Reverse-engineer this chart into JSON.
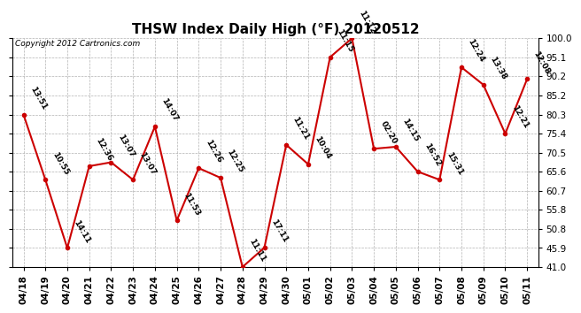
{
  "title": "THSW Index Daily High (°F) 20120512",
  "copyright": "Copyright 2012 Cartronics.com",
  "x_labels": [
    "04/18",
    "04/19",
    "04/20",
    "04/21",
    "04/22",
    "04/23",
    "04/24",
    "04/25",
    "04/26",
    "04/27",
    "04/28",
    "04/29",
    "04/30",
    "05/01",
    "05/02",
    "05/03",
    "05/04",
    "05/05",
    "05/06",
    "05/07",
    "05/08",
    "05/09",
    "05/10",
    "05/11"
  ],
  "y_values": [
    80.3,
    63.5,
    45.9,
    67.0,
    68.0,
    63.5,
    77.2,
    53.0,
    66.5,
    64.0,
    41.0,
    46.0,
    72.5,
    67.5,
    95.1,
    100.0,
    71.5,
    72.0,
    65.6,
    63.5,
    92.5,
    88.0,
    75.4,
    89.5
  ],
  "annotations": [
    "13:51",
    "10:55",
    "14:11",
    "12:36",
    "13:07",
    "13:07",
    "14:07",
    "11:53",
    "12:26",
    "12:25",
    "11:11",
    "17:11",
    "11:21",
    "10:04",
    "11:15",
    "11:12",
    "02:20",
    "14:15",
    "16:52",
    "15:31",
    "12:24",
    "13:38",
    "12:21",
    "12:08"
  ],
  "ylim_min": 41.0,
  "ylim_max": 100.0,
  "y_ticks": [
    41.0,
    45.9,
    50.8,
    55.8,
    60.7,
    65.6,
    70.5,
    75.4,
    80.3,
    85.2,
    90.2,
    95.1,
    100.0
  ],
  "line_color": "#cc0000",
  "marker_color": "#cc0000",
  "background_color": "#ffffff",
  "grid_color": "#aaaaaa",
  "ann_rotation": -60,
  "ann_fontsize": 6.5,
  "tick_fontsize": 7.5,
  "ytick_fontsize": 7.5,
  "title_fontsize": 11,
  "copyright_fontsize": 6.5
}
